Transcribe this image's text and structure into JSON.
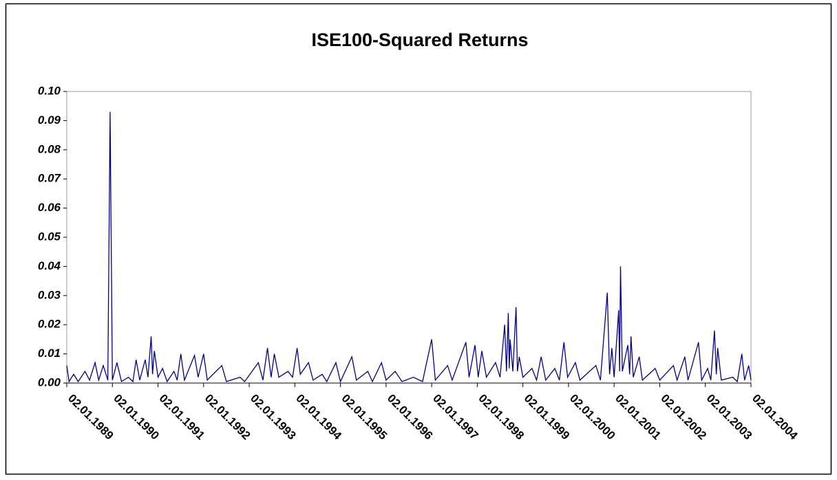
{
  "chart_data": {
    "type": "line",
    "title": "ISE100-Squared Returns",
    "color": "#000080",
    "xlim": [
      1989,
      2004
    ],
    "xticks": [
      {
        "value": 1989,
        "label": "02.01.1989"
      },
      {
        "value": 1990,
        "label": "02.01.1990"
      },
      {
        "value": 1991,
        "label": "02.01.1991"
      },
      {
        "value": 1992,
        "label": "02.01.1992"
      },
      {
        "value": 1993,
        "label": "02.01.1993"
      },
      {
        "value": 1994,
        "label": "02.01.1994"
      },
      {
        "value": 1995,
        "label": "02.01.1995"
      },
      {
        "value": 1996,
        "label": "02.01.1996"
      },
      {
        "value": 1997,
        "label": "02.01.1997"
      },
      {
        "value": 1998,
        "label": "02.01.1998"
      },
      {
        "value": 1999,
        "label": "02.01.1999"
      },
      {
        "value": 2000,
        "label": "02.01.2000"
      },
      {
        "value": 2001,
        "label": "02.01.2001"
      },
      {
        "value": 2002,
        "label": "02.01.2002"
      },
      {
        "value": 2003,
        "label": "02.01.2003"
      },
      {
        "value": 2004,
        "label": "02.01.2004"
      }
    ],
    "ylim": [
      0,
      0.1
    ],
    "yticks": [
      {
        "value": 0,
        "label": "0.00"
      },
      0.01,
      0.02,
      0.03,
      0.04,
      0.05,
      0.06,
      0.07,
      0.08,
      0.09,
      {
        "value": 0.1,
        "label": "0.10"
      }
    ],
    "x": [
      1989.0,
      1989.05,
      1989.15,
      1989.25,
      1989.4,
      1989.5,
      1989.62,
      1989.7,
      1989.8,
      1989.9,
      1989.95,
      1990.0,
      1990.1,
      1990.2,
      1990.35,
      1990.45,
      1990.52,
      1990.6,
      1990.72,
      1990.78,
      1990.85,
      1990.88,
      1990.92,
      1991.0,
      1991.1,
      1991.2,
      1991.35,
      1991.42,
      1991.5,
      1991.58,
      1991.8,
      1991.88,
      1992.0,
      1992.08,
      1992.4,
      1992.5,
      1992.8,
      1992.9,
      1993.2,
      1993.3,
      1993.4,
      1993.48,
      1993.55,
      1993.65,
      1993.85,
      1993.95,
      1994.05,
      1994.12,
      1994.3,
      1994.4,
      1994.6,
      1994.7,
      1994.9,
      1995.0,
      1995.25,
      1995.35,
      1995.6,
      1995.7,
      1995.9,
      1996.0,
      1996.2,
      1996.35,
      1996.6,
      1996.8,
      1997.0,
      1997.08,
      1997.35,
      1997.45,
      1997.75,
      1997.82,
      1997.95,
      1998.02,
      1998.1,
      1998.2,
      1998.4,
      1998.5,
      1998.6,
      1998.64,
      1998.68,
      1998.7,
      1998.72,
      1998.78,
      1998.85,
      1998.88,
      1998.92,
      1999.0,
      1999.2,
      1999.3,
      1999.4,
      1999.5,
      1999.7,
      1999.8,
      1999.9,
      1999.98,
      2000.15,
      2000.25,
      2000.6,
      2000.7,
      2000.85,
      2000.9,
      2000.95,
      2001.0,
      2001.1,
      2001.12,
      2001.14,
      2001.18,
      2001.3,
      2001.34,
      2001.37,
      2001.42,
      2001.55,
      2001.62,
      2001.9,
      2002.0,
      2002.3,
      2002.38,
      2002.55,
      2002.62,
      2002.85,
      2002.92,
      2003.05,
      2003.12,
      2003.2,
      2003.24,
      2003.27,
      2003.35,
      2003.6,
      2003.7,
      2003.8,
      2003.86,
      2003.95,
      2004.0
    ],
    "series": [
      {
        "name": "ISE100-Squared Returns",
        "color": "#000080",
        "values": [
          0.006,
          0.0005,
          0.003,
          0.0005,
          0.004,
          0.001,
          0.007,
          0.001,
          0.006,
          0.001,
          0.093,
          0.001,
          0.007,
          0.0005,
          0.002,
          0.0005,
          0.008,
          0.001,
          0.008,
          0.002,
          0.016,
          0.003,
          0.011,
          0.002,
          0.005,
          0.0005,
          0.004,
          0.001,
          0.01,
          0.001,
          0.0095,
          0.002,
          0.01,
          0.001,
          0.006,
          0.0005,
          0.002,
          0.0005,
          0.007,
          0.001,
          0.012,
          0.002,
          0.01,
          0.002,
          0.004,
          0.002,
          0.012,
          0.003,
          0.007,
          0.001,
          0.003,
          0.0005,
          0.007,
          0.0005,
          0.009,
          0.001,
          0.004,
          0.0005,
          0.007,
          0.001,
          0.004,
          0.0005,
          0.002,
          0.0005,
          0.015,
          0.001,
          0.006,
          0.001,
          0.014,
          0.002,
          0.013,
          0.002,
          0.011,
          0.002,
          0.007,
          0.002,
          0.02,
          0.004,
          0.024,
          0.005,
          0.015,
          0.004,
          0.026,
          0.004,
          0.009,
          0.002,
          0.005,
          0.001,
          0.009,
          0.001,
          0.005,
          0.001,
          0.014,
          0.002,
          0.007,
          0.001,
          0.006,
          0.001,
          0.031,
          0.003,
          0.012,
          0.002,
          0.025,
          0.004,
          0.04,
          0.004,
          0.013,
          0.003,
          0.016,
          0.002,
          0.009,
          0.001,
          0.005,
          0.001,
          0.006,
          0.001,
          0.009,
          0.001,
          0.014,
          0.001,
          0.005,
          0.001,
          0.018,
          0.003,
          0.012,
          0.001,
          0.002,
          0.0005,
          0.01,
          0.001,
          0.006,
          0.001
        ]
      }
    ]
  }
}
